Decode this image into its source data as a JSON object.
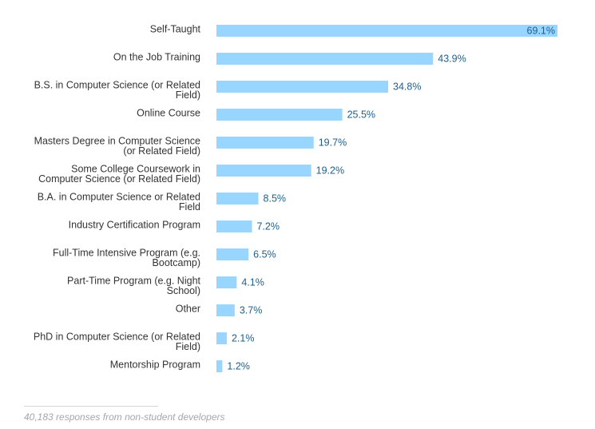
{
  "chart_data": {
    "type": "bar",
    "orientation": "horizontal",
    "value_suffix": "%",
    "xlim": [
      0,
      69.1
    ],
    "bar_color": "#99d6ff",
    "label_color": "#1f5f8b",
    "categories": [
      "Self-Taught",
      "On the Job Training",
      "B.S. in Computer Science (or Related Field)",
      "Online Course",
      "Masters Degree in Computer Science (or Related Field)",
      "Some College Coursework in Computer Science (or Related Field)",
      "B.A. in Computer Science or Related Field",
      "Industry Certification Program",
      "Full-Time Intensive Program (e.g. Bootcamp)",
      "Part-Time Program (e.g. Night School)",
      "Other",
      "PhD in Computer Science (or Related Field)",
      "Mentorship Program"
    ],
    "category_lines": [
      [
        "Self-Taught"
      ],
      [
        "On the Job Training"
      ],
      [
        "B.S. in Computer Science (or Related",
        "Field)"
      ],
      [
        "Online Course"
      ],
      [
        "Masters Degree in Computer Science",
        "(or Related Field)"
      ],
      [
        "Some College Coursework in",
        "Computer Science (or Related Field)"
      ],
      [
        "B.A. in Computer Science or Related",
        "Field"
      ],
      [
        "Industry Certification Program"
      ],
      [
        "Full-Time Intensive Program (e.g.",
        "Bootcamp)"
      ],
      [
        "Part-Time Program (e.g. Night",
        "School)"
      ],
      [
        "Other"
      ],
      [
        "PhD in Computer Science (or Related",
        "Field)"
      ],
      [
        "Mentorship Program"
      ]
    ],
    "values": [
      69.1,
      43.9,
      34.8,
      25.5,
      19.7,
      19.2,
      8.5,
      7.2,
      6.5,
      4.1,
      3.7,
      2.1,
      1.2
    ],
    "value_labels": [
      "69.1%",
      "43.9%",
      "34.8%",
      "25.5%",
      "19.7%",
      "19.2%",
      "8.5%",
      "7.2%",
      "6.5%",
      "4.1%",
      "3.7%",
      "2.1%",
      "1.2%"
    ],
    "footnote": "40,183 responses from non-student developers"
  }
}
